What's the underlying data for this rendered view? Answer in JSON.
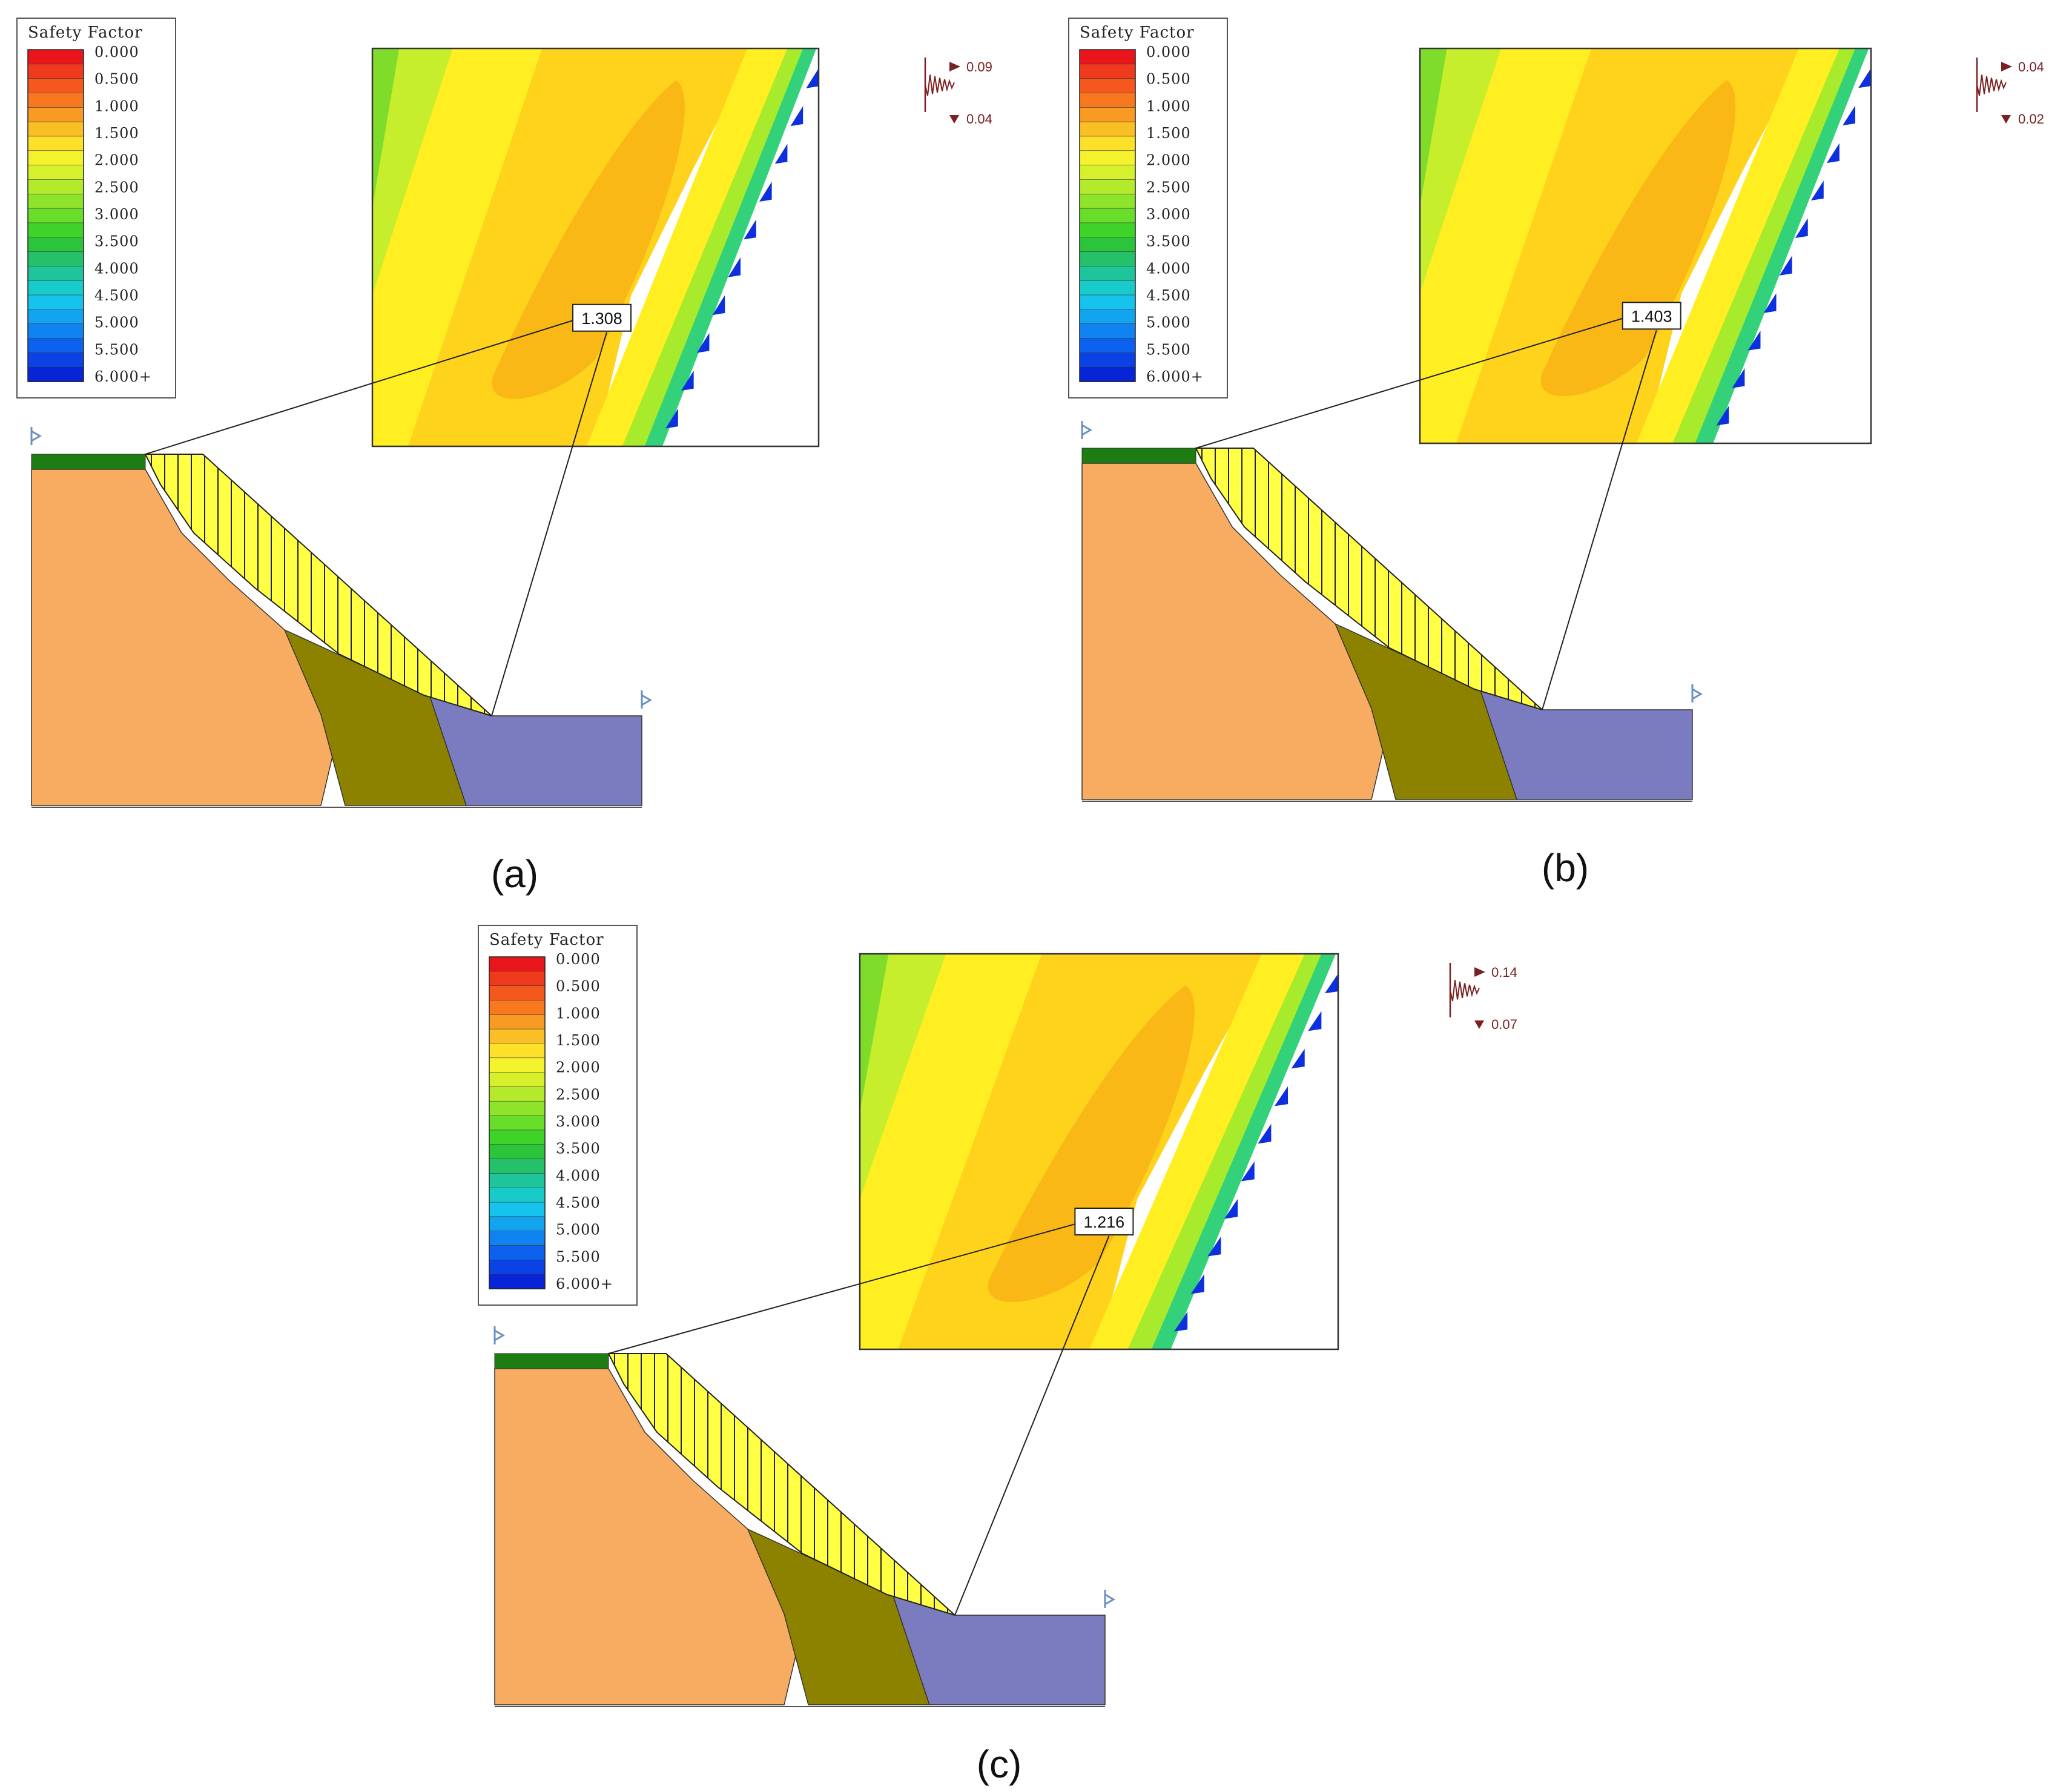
{
  "legend": {
    "title": "Safety Factor",
    "labels": [
      "0.000",
      "0.500",
      "1.000",
      "1.500",
      "2.000",
      "2.500",
      "3.000",
      "3.500",
      "4.000",
      "4.500",
      "5.000",
      "5.500",
      "6.000+"
    ],
    "colors": [
      "#e8161a",
      "#ef3a1d",
      "#f4581e",
      "#f7781f",
      "#f99a22",
      "#fbbf26",
      "#fde02a",
      "#f3f22c",
      "#d6f02c",
      "#b3ea2b",
      "#8ee42a",
      "#68de2a",
      "#3fd329",
      "#2cc43a",
      "#24c06a",
      "#1ec59b",
      "#19cbc8",
      "#15c3ec",
      "#13a4f0",
      "#1083f0",
      "#0c62ee",
      "#0a42e6",
      "#0824d8"
    ]
  },
  "panels": [
    {
      "id": "a",
      "caption": "(a)",
      "fos": "1.308",
      "seismic_h": "0.09",
      "seismic_v": "0.04"
    },
    {
      "id": "b",
      "caption": "(b)",
      "fos": "1.403",
      "seismic_h": "0.04",
      "seismic_v": "0.02"
    },
    {
      "id": "c",
      "caption": "(c)",
      "fos": "1.216",
      "seismic_h": "0.14",
      "seismic_v": "0.07"
    }
  ],
  "colors": {
    "orange_layer": "#f8ac62",
    "olive_layer": "#8c8200",
    "blue_layer": "#7b7cbf",
    "green_strip": "#1e7d12",
    "slide_mass": "#ffff44",
    "contour_base": "#ffd21c",
    "contour_core": "#f9b816",
    "contour_outer": "#ffef22",
    "contour_green": "#a8ea2c"
  }
}
